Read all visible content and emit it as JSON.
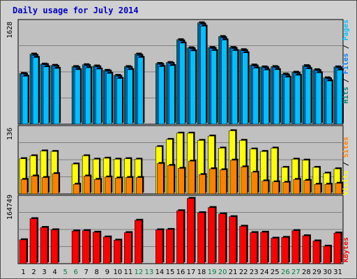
{
  "title": "Daily usage for July 2014",
  "colors": {
    "pages": "#00c0ff",
    "files": "#0080ff",
    "hits": "#008080",
    "visits": "#ffff00",
    "sites": "#ff8000",
    "kbytes": "#ff0000",
    "weekend_day": "#008040",
    "weekday": "#000000",
    "panel": "#c0c0c0"
  },
  "chart_data": [
    {
      "type": "bar",
      "panel": "hits",
      "title": "",
      "ymax_label": "1628",
      "ylim": [
        0,
        1628
      ],
      "legend": {
        "pages": "Pages",
        "files": "Files",
        "hits": "Hits",
        "separator": " / "
      },
      "categories": [
        "1",
        "2",
        "3",
        "4",
        "5",
        "6",
        "7",
        "8",
        "9",
        "10",
        "11",
        "12",
        "13",
        "14",
        "15",
        "16",
        "17",
        "18",
        "19",
        "20",
        "21",
        "22",
        "23",
        "24",
        "25",
        "26",
        "27",
        "28",
        "29",
        "30",
        "31"
      ],
      "weekend": [
        "5",
        "6",
        "12",
        "13",
        "19",
        "20",
        "26",
        "27"
      ],
      "series": [
        {
          "name": "Hits",
          "values": [
            810,
            1120,
            960,
            940,
            0,
            920,
            950,
            930,
            860,
            780,
            920,
            1120,
            0,
            970,
            985,
            1350,
            1220,
            1620,
            1225,
            1400,
            1225,
            1190,
            945,
            915,
            920,
            800,
            830,
            935,
            870,
            740,
            915
          ]
        },
        {
          "name": "Files",
          "values": [
            800,
            1100,
            950,
            925,
            0,
            905,
            935,
            915,
            845,
            765,
            905,
            1100,
            0,
            955,
            970,
            1330,
            1205,
            1600,
            1210,
            1380,
            1210,
            1175,
            930,
            900,
            905,
            785,
            815,
            920,
            855,
            725,
            900
          ]
        }
      ]
    },
    {
      "type": "bar",
      "panel": "visits",
      "title": "",
      "ymax_label": "136",
      "ylim": [
        0,
        136
      ],
      "legend": {
        "visits": "Visits",
        "sites": "Sites",
        "separator": " / "
      },
      "categories": [
        "1",
        "2",
        "3",
        "4",
        "5",
        "6",
        "7",
        "8",
        "9",
        "10",
        "11",
        "12",
        "13",
        "14",
        "15",
        "16",
        "17",
        "18",
        "19",
        "20",
        "21",
        "22",
        "23",
        "24",
        "25",
        "26",
        "27",
        "28",
        "29",
        "30",
        "31"
      ],
      "series": [
        {
          "name": "Visits",
          "values": [
            73,
            79,
            89,
            88,
            0,
            62,
            79,
            72,
            74,
            72,
            73,
            72,
            0,
            98,
            113,
            126,
            126,
            111,
            120,
            95,
            131,
            111,
            93,
            88,
            95,
            55,
            72,
            70,
            55,
            43,
            52
          ]
        },
        {
          "name": "Sites",
          "values": [
            30,
            37,
            34,
            42,
            0,
            20,
            37,
            30,
            35,
            33,
            34,
            34,
            0,
            63,
            59,
            53,
            68,
            40,
            52,
            50,
            70,
            56,
            45,
            27,
            25,
            24,
            30,
            28,
            20,
            20,
            22
          ]
        }
      ]
    },
    {
      "type": "bar",
      "panel": "kbytes",
      "title": "",
      "ymax_label": "164749",
      "ylim": [
        0,
        164749
      ],
      "legend": {
        "kbytes": "KBytes"
      },
      "categories": [
        "1",
        "2",
        "3",
        "4",
        "5",
        "6",
        "7",
        "8",
        "9",
        "10",
        "11",
        "12",
        "13",
        "14",
        "15",
        "16",
        "17",
        "18",
        "19",
        "20",
        "21",
        "22",
        "23",
        "24",
        "25",
        "26",
        "27",
        "28",
        "29",
        "30",
        "31"
      ],
      "series": [
        {
          "name": "KBytes",
          "values": [
            60000,
            113000,
            91000,
            85000,
            0,
            82000,
            83000,
            79000,
            67000,
            59000,
            78000,
            109000,
            0,
            85000,
            86000,
            133000,
            164000,
            128000,
            141000,
            125000,
            118000,
            94000,
            78000,
            79000,
            64000,
            66000,
            83000,
            70000,
            57000,
            44000,
            77000
          ]
        }
      ]
    }
  ]
}
